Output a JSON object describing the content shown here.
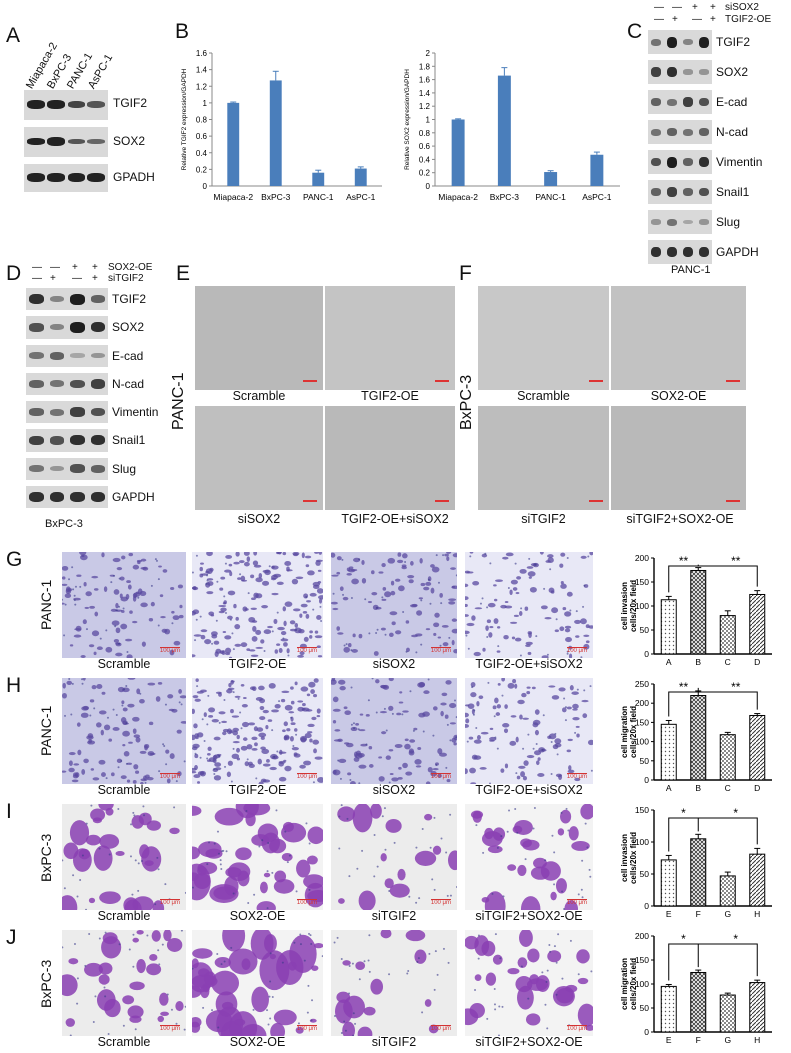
{
  "panels": {
    "A": {
      "letter": "A",
      "lanes": [
        "Miapaca-2",
        "BxPC-3",
        "PANC-1",
        "AsPC-1"
      ],
      "bands": [
        "TGIF2",
        "SOX2",
        "GPADH"
      ]
    },
    "B": {
      "letter": "B",
      "charts": [
        {
          "ylabel": "Relative TGIF2 expression/GAPDH"
        },
        {
          "ylabel": "Relative SOX2 expression/GAPDH"
        }
      ]
    },
    "C": {
      "letter": "C",
      "header": {
        "row1_label": "siSOX2",
        "row2_label": "TGIF2-OE",
        "row1": [
          "—",
          "—",
          "+",
          "+"
        ],
        "row2": [
          "—",
          "+",
          "—",
          "+"
        ]
      },
      "bands": [
        "TGIF2",
        "SOX2",
        "E-cad",
        "N-cad",
        "Vimentin",
        "Snail1",
        "Slug",
        "GAPDH"
      ],
      "cell_line": "PANC-1"
    },
    "D": {
      "letter": "D",
      "header": {
        "row1_label": "SOX2-OE",
        "row2_label": "siTGIF2",
        "row1": [
          "—",
          "—",
          "+",
          "+"
        ],
        "row2": [
          "—",
          "+",
          "—",
          "+"
        ]
      },
      "bands": [
        "TGIF2",
        "SOX2",
        "E-cad",
        "N-cad",
        "Vimentin",
        "Snail1",
        "Slug",
        "GAPDH"
      ],
      "cell_line": "BxPC-3"
    },
    "E": {
      "letter": "E",
      "side": "PANC-1",
      "captions": [
        "Scramble",
        "TGIF2-OE",
        "siSOX2",
        "TGIF2-OE+siSOX2"
      ]
    },
    "F": {
      "letter": "F",
      "side": "BxPC-3",
      "captions": [
        "Scramble",
        "SOX2-OE",
        "siTGIF2",
        "siTGIF2+SOX2-OE"
      ]
    },
    "G": {
      "letter": "G",
      "side": "PANC-1",
      "captions": [
        "Scramble",
        "TGIF2-OE",
        "siSOX2",
        "TGIF2-OE+siSOX2"
      ]
    },
    "H": {
      "letter": "H",
      "side": "PANC-1",
      "captions": [
        "Scramble",
        "TGIF2-OE",
        "siSOX2",
        "TGIF2-OE+siSOX2"
      ]
    },
    "I": {
      "letter": "I",
      "side": "BxPC-3",
      "captions": [
        "Scramble",
        "SOX2-OE",
        "siTGIF2",
        "siTGIF2+SOX2-OE"
      ]
    },
    "J": {
      "letter": "J",
      "side": "BxPC-3",
      "captions": [
        "Scramble",
        "SOX2-OE",
        "siTGIF2",
        "siTGIF2+SOX2-OE"
      ]
    }
  },
  "scale_bar_text": "100 μm",
  "colors": {
    "bar_blue": "#4a7ebb",
    "stain_purple": "#8a3fb3",
    "scale_red": "#d33333"
  },
  "chart_data": [
    {
      "type": "bar",
      "categories": [
        "Miapaca-2",
        "BxPC-3",
        "PANC-1",
        "AsPC-1"
      ],
      "values": [
        1.0,
        1.27,
        0.16,
        0.21
      ],
      "errors": [
        0.01,
        0.11,
        0.03,
        0.02
      ],
      "ylabel": "Relative TGIF2 expression/GAPDH",
      "ylim": [
        0,
        1.6
      ],
      "yticks": [
        "0",
        "0.2",
        "0.4",
        "0.6",
        "0.8",
        "1",
        "1.2",
        "1.4",
        "1.6"
      ]
    },
    {
      "type": "bar",
      "categories": [
        "Miapaca-2",
        "BxPC-3",
        "PANC-1",
        "AsPC-1"
      ],
      "values": [
        1.0,
        1.66,
        0.21,
        0.47
      ],
      "errors": [
        0.01,
        0.12,
        0.02,
        0.04
      ],
      "ylabel": "Relative SOX2 expression/GAPDH",
      "ylim": [
        0,
        2
      ],
      "yticks": [
        "0",
        "0.2",
        "0.4",
        "0.6",
        "0.8",
        "1",
        "1.2",
        "1.4",
        "1.6",
        "1.8",
        "2"
      ]
    },
    {
      "type": "bar",
      "categories": [
        "A",
        "B",
        "C",
        "D"
      ],
      "values": [
        113,
        174,
        80,
        124
      ],
      "errors": [
        7,
        6,
        10,
        8
      ],
      "ylabel": "cell invasion cells/20x field",
      "ylim": [
        0,
        200
      ],
      "yticks": [
        "0",
        "50",
        "100",
        "150",
        "200"
      ],
      "significance": [
        "**",
        "**"
      ]
    },
    {
      "type": "bar",
      "categories": [
        "A",
        "B",
        "C",
        "D"
      ],
      "values": [
        145,
        220,
        118,
        168
      ],
      "errors": [
        10,
        12,
        6,
        5
      ],
      "ylabel": "cell migration cells/20x field",
      "ylim": [
        0,
        250
      ],
      "yticks": [
        "0",
        "50",
        "100",
        "150",
        "200",
        "250"
      ],
      "significance": [
        "**",
        "**"
      ]
    },
    {
      "type": "bar",
      "categories": [
        "E",
        "F",
        "G",
        "H"
      ],
      "values": [
        72,
        105,
        47,
        81
      ],
      "errors": [
        7,
        7,
        6,
        9
      ],
      "ylabel": "cell invasion cells/20x field",
      "ylim": [
        0,
        150
      ],
      "yticks": [
        "0",
        "50",
        "100",
        "150"
      ],
      "significance": [
        "*",
        "*"
      ]
    },
    {
      "type": "bar",
      "categories": [
        "E",
        "F",
        "G",
        "H"
      ],
      "values": [
        95,
        124,
        77,
        103
      ],
      "errors": [
        4,
        5,
        4,
        5
      ],
      "ylabel": "cell migration cells/20x field",
      "ylim": [
        0,
        200
      ],
      "yticks": [
        "0",
        "50",
        "100",
        "150",
        "200"
      ],
      "significance": [
        "*",
        "*"
      ]
    }
  ]
}
